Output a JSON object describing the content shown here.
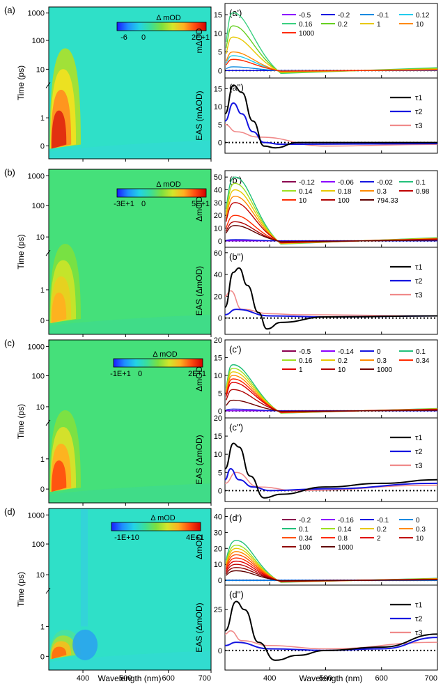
{
  "colors": {
    "cmap": [
      "#1a1aff",
      "#1e90ff",
      "#22d3e6",
      "#3adf9a",
      "#7be040",
      "#d4e62a",
      "#ffb020",
      "#ff4a10",
      "#d40000"
    ],
    "teal_bg": "#2fe0c8",
    "green_bg": "#45e07a",
    "tau1": "#000000",
    "tau2": "#1414e0",
    "tau3": "#f08a8a"
  },
  "layout_text": {
    "wavelength_label": "Wavelength (nm)",
    "time_label": "Time (ps)",
    "colorbar_title": "Δ mOD",
    "x_ticks": [
      "400",
      "500",
      "600",
      "700"
    ],
    "y_ticks_upper": [
      "1000",
      "100",
      "10"
    ],
    "y_ticks_lower": [
      "1",
      "0"
    ],
    "eas_legend": [
      "τ1",
      "τ2",
      "τ3"
    ]
  },
  "chart_data": [
    {
      "type": "heatmap",
      "panel": "(a)",
      "xlabel": "Wavelength (nm)",
      "ylabel": "Time (ps)",
      "x_ticks": [
        400,
        500,
        600,
        700
      ],
      "y_ticks": [
        0,
        1,
        10,
        100,
        1000
      ],
      "colorbar": {
        "title": "Δ mOD",
        "ticks": [
          "-6",
          "0",
          "2E+1"
        ]
      },
      "background": "teal",
      "features": [
        "positive band near 340 nm at early times"
      ]
    },
    {
      "type": "line",
      "panel": "(a')",
      "ylabel": "mΔOD",
      "yticks": [
        0,
        5,
        10,
        15
      ],
      "legend": [
        "-0.5",
        "-0.2",
        "-0.1",
        "0.12",
        "0.16",
        "0.2",
        "1",
        "10",
        "1000"
      ],
      "peak_x": 335,
      "peak_values": [
        0,
        0,
        1,
        4,
        15.5,
        12,
        9,
        5,
        3
      ]
    },
    {
      "type": "line",
      "panel": "(a'')",
      "ylabel": "EAS (mΔOD)",
      "yticks": [
        0,
        5,
        10,
        15
      ],
      "series": [
        {
          "name": "τ1",
          "x": [
            320,
            335,
            350,
            370,
            390,
            410,
            450,
            700
          ],
          "y": [
            8,
            16,
            14,
            6,
            -1,
            -1.5,
            0,
            0
          ]
        },
        {
          "name": "τ2",
          "x": [
            320,
            335,
            350,
            370,
            390,
            420,
            700
          ],
          "y": [
            6,
            11,
            8,
            3,
            0,
            -0.5,
            -0.3
          ]
        },
        {
          "name": "τ3",
          "x": [
            320,
            340,
            380,
            500,
            700
          ],
          "y": [
            5,
            3,
            1.5,
            -1,
            -0.5
          ]
        }
      ]
    },
    {
      "type": "heatmap",
      "panel": "(b)",
      "xlabel": "Wavelength (nm)",
      "ylabel": "Time (ps)",
      "x_ticks": [
        400,
        500,
        600,
        700
      ],
      "y_ticks": [
        0,
        1,
        10,
        100,
        1000
      ],
      "colorbar": {
        "title": "Δ mOD",
        "ticks": [
          "-3E+1",
          "0",
          "5E+1"
        ]
      },
      "background": "green"
    },
    {
      "type": "line",
      "panel": "(b')",
      "ylabel": "ΔmOD",
      "yticks": [
        0,
        10,
        20,
        30,
        40,
        50
      ],
      "legend": [
        "-0.12",
        "-0.06",
        "-0.02",
        "0.1",
        "0.14",
        "0.18",
        "0.3",
        "0.98",
        "10",
        "100",
        "794.33"
      ],
      "peak_x": 338,
      "peak_values": [
        0,
        0,
        1,
        50,
        45,
        40,
        35,
        30,
        20,
        15,
        12
      ]
    },
    {
      "type": "line",
      "panel": "(b'')",
      "ylabel": "EAS (ΔmOD)",
      "yticks": [
        0,
        20,
        40,
        60
      ],
      "series": [
        {
          "name": "τ1",
          "x": [
            320,
            335,
            345,
            360,
            380,
            395,
            420,
            500,
            700
          ],
          "y": [
            10,
            42,
            46,
            30,
            5,
            -10,
            -4,
            1,
            2
          ]
        },
        {
          "name": "τ2",
          "x": [
            320,
            340,
            400,
            500,
            700
          ],
          "y": [
            3,
            8,
            2,
            1,
            2
          ]
        },
        {
          "name": "τ3",
          "x": [
            320,
            330,
            350,
            400,
            450,
            700
          ],
          "y": [
            20,
            25,
            8,
            4,
            3,
            2
          ]
        }
      ]
    },
    {
      "type": "heatmap",
      "panel": "(c)",
      "xlabel": "Wavelength (nm)",
      "ylabel": "Time (ps)",
      "x_ticks": [
        400,
        500,
        600,
        700
      ],
      "y_ticks": [
        0,
        1,
        10,
        100,
        1000
      ],
      "colorbar": {
        "title": "Δ mOD",
        "ticks": [
          "-1E+1",
          "0",
          "2E+1"
        ]
      },
      "background": "green"
    },
    {
      "type": "line",
      "panel": "(c')",
      "ylabel": "ΔmOD",
      "yticks": [
        0,
        5,
        10,
        15,
        20
      ],
      "legend": [
        "-0.5",
        "-0.14",
        "0",
        "0.1",
        "0.16",
        "0.2",
        "0.3",
        "0.34",
        "1",
        "10",
        "1000"
      ],
      "peak_x": 335,
      "peak_values": [
        0,
        0,
        0.5,
        13,
        12,
        11,
        10,
        9,
        8,
        6,
        3
      ]
    },
    {
      "type": "line",
      "panel": "(c'')",
      "ylabel": "EAS (ΔmOD)",
      "yticks": [
        0,
        5,
        10,
        15,
        20
      ],
      "series": [
        {
          "name": "τ1",
          "x": [
            320,
            335,
            345,
            365,
            390,
            420,
            500,
            600,
            700
          ],
          "y": [
            6,
            13,
            12,
            4,
            -2,
            -1,
            1,
            2,
            3
          ]
        },
        {
          "name": "τ2",
          "x": [
            320,
            330,
            345,
            370,
            400,
            500,
            700
          ],
          "y": [
            3,
            6,
            3,
            1,
            0,
            0.5,
            2
          ]
        },
        {
          "name": "τ3",
          "x": [
            320,
            340,
            380,
            450,
            700
          ],
          "y": [
            2,
            5,
            1,
            0,
            1.5
          ]
        }
      ]
    },
    {
      "type": "heatmap",
      "panel": "(d)",
      "xlabel": "Wavelength (nm)",
      "ylabel": "Time (ps)",
      "x_ticks": [
        400,
        500,
        600,
        700
      ],
      "y_ticks": [
        0,
        1,
        10,
        100,
        1000
      ],
      "colorbar": {
        "title": "Δ mOD",
        "ticks": [
          "-1E+10",
          "4E+1"
        ]
      },
      "background": "teal",
      "features": [
        "negative band near 400 nm"
      ]
    },
    {
      "type": "line",
      "panel": "(d')",
      "ylabel": "ΔmOD",
      "yticks": [
        0,
        10,
        20,
        30,
        40
      ],
      "legend": [
        "-0.2",
        "-0.16",
        "-0.1",
        "0",
        "0.1",
        "0.14",
        "0.2",
        "0.3",
        "0.34",
        "0.8",
        "2",
        "10",
        "100",
        "1000"
      ],
      "peak_x": 340,
      "peak_values": [
        0,
        0,
        0,
        0,
        25,
        22,
        20,
        18,
        16,
        14,
        12,
        10,
        8,
        6
      ]
    },
    {
      "type": "line",
      "panel": "(d'')",
      "ylabel": "EAS (ΔmOD)",
      "yticks": [
        0,
        25
      ],
      "series": [
        {
          "name": "τ1",
          "x": [
            320,
            340,
            355,
            380,
            410,
            450,
            500,
            600,
            700
          ],
          "y": [
            12,
            30,
            25,
            5,
            -6,
            -3,
            0,
            2,
            10
          ]
        },
        {
          "name": "τ2",
          "x": [
            320,
            340,
            400,
            500,
            600,
            700
          ],
          "y": [
            3,
            5,
            1,
            0,
            1,
            8
          ]
        },
        {
          "name": "τ3",
          "x": [
            320,
            330,
            350,
            400,
            500,
            700
          ],
          "y": [
            10,
            12,
            6,
            3,
            1,
            5
          ]
        }
      ]
    }
  ]
}
